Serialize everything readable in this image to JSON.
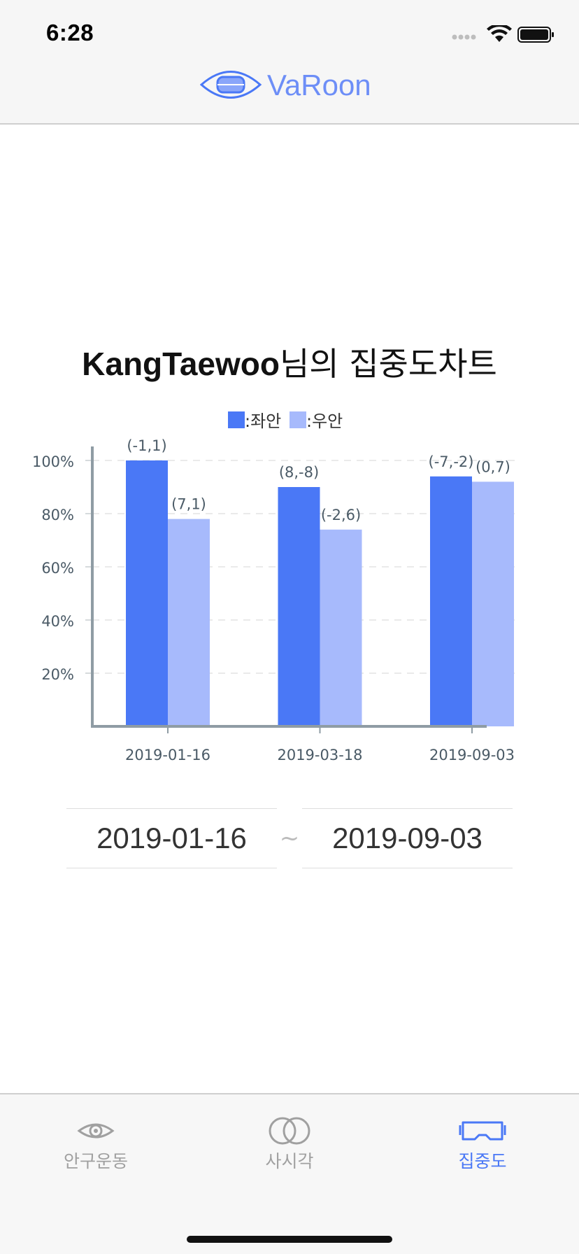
{
  "status_bar": {
    "time": "6:28",
    "icons": [
      "signal-dots-icon",
      "wifi-icon",
      "battery-icon"
    ]
  },
  "header": {
    "logo_text": "VaRoon",
    "brand_color": "#4a78f6"
  },
  "title": {
    "name": "KangTaewoo",
    "suffix": "님의 집중도차트"
  },
  "chart_data": {
    "type": "bar",
    "categories": [
      "2019-01-16",
      "2019-03-18",
      "2019-09-03"
    ],
    "series": [
      {
        "name": ":좌안",
        "color": "#4a78f6",
        "values": [
          100,
          90,
          94
        ],
        "labels": [
          "(-1,1)",
          "(8,-8)",
          "(-7,-2)"
        ]
      },
      {
        "name": ":우안",
        "color": "#a7bafc",
        "values": [
          78,
          74,
          92
        ],
        "labels": [
          "(7,1)",
          "(-2,6)",
          "(0,7)"
        ]
      }
    ],
    "y_ticks": [
      "20%",
      "40%",
      "60%",
      "80%",
      "100%"
    ],
    "ylim": [
      0,
      100
    ],
    "grid": true,
    "legend_position": "top-center"
  },
  "date_range": {
    "start": "2019-01-16",
    "separator": "~",
    "end": "2019-09-03"
  },
  "tabbar": {
    "tabs": [
      {
        "label": "안구운동",
        "icon": "eye-icon",
        "active": false
      },
      {
        "label": "사시각",
        "icon": "double-circle-icon",
        "active": false
      },
      {
        "label": "집중도",
        "icon": "vr-headset-icon",
        "active": true
      }
    ]
  }
}
